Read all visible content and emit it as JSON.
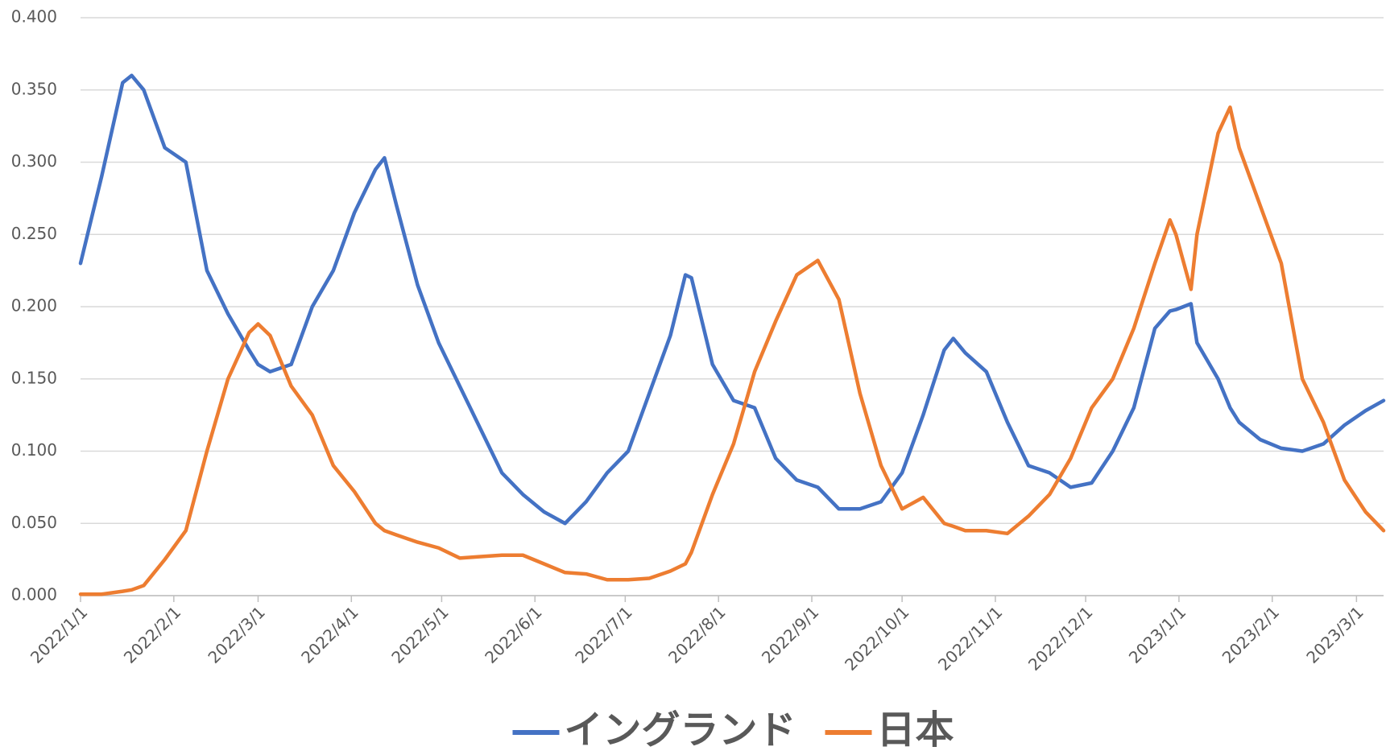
{
  "chart_data": {
    "type": "line",
    "x": [
      "2022/1/1",
      "2022/1/8",
      "2022/1/15",
      "2022/1/18",
      "2022/1/22",
      "2022/1/29",
      "2022/2/5",
      "2022/2/12",
      "2022/2/19",
      "2022/2/26",
      "2022/3/1",
      "2022/3/5",
      "2022/3/12",
      "2022/3/19",
      "2022/3/26",
      "2022/4/2",
      "2022/4/9",
      "2022/4/12",
      "2022/4/16",
      "2022/4/23",
      "2022/4/30",
      "2022/5/7",
      "2022/5/14",
      "2022/5/21",
      "2022/5/28",
      "2022/6/4",
      "2022/6/11",
      "2022/6/18",
      "2022/6/25",
      "2022/7/2",
      "2022/7/9",
      "2022/7/16",
      "2022/7/21",
      "2022/7/23",
      "2022/7/30",
      "2022/8/6",
      "2022/8/13",
      "2022/8/20",
      "2022/8/27",
      "2022/9/3",
      "2022/9/10",
      "2022/9/17",
      "2022/9/24",
      "2022/10/1",
      "2022/10/8",
      "2022/10/15",
      "2022/10/18",
      "2022/10/22",
      "2022/10/29",
      "2022/11/5",
      "2022/11/12",
      "2022/11/19",
      "2022/11/26",
      "2022/12/3",
      "2022/12/10",
      "2022/12/17",
      "2022/12/24",
      "2022/12/29",
      "2022/12/31",
      "2023/1/5",
      "2023/1/7",
      "2023/1/14",
      "2023/1/18",
      "2023/1/21",
      "2023/1/28",
      "2023/2/4",
      "2023/2/11",
      "2023/2/18",
      "2023/2/25",
      "2023/3/4",
      "2023/3/10"
    ],
    "series": [
      {
        "name": "イングランド",
        "color": "#4472c4",
        "values": [
          0.23,
          0.29,
          0.355,
          0.36,
          0.35,
          0.31,
          0.3,
          0.225,
          0.195,
          0.17,
          0.16,
          0.155,
          0.16,
          0.2,
          0.225,
          0.265,
          0.295,
          0.303,
          0.27,
          0.215,
          0.175,
          0.145,
          0.115,
          0.085,
          0.07,
          0.058,
          0.05,
          0.065,
          0.085,
          0.1,
          0.14,
          0.18,
          0.222,
          0.22,
          0.16,
          0.135,
          0.13,
          0.095,
          0.08,
          0.075,
          0.06,
          0.06,
          0.065,
          0.085,
          0.125,
          0.17,
          0.178,
          0.168,
          0.155,
          0.12,
          0.09,
          0.085,
          0.075,
          0.078,
          0.1,
          0.13,
          0.185,
          0.197,
          0.198,
          0.202,
          0.175,
          0.15,
          0.13,
          0.12,
          0.108,
          0.102,
          0.1,
          0.105,
          0.118,
          0.128,
          0.135
        ]
      },
      {
        "name": "日本",
        "color": "#ed7d31",
        "values": [
          0.001,
          0.001,
          0.003,
          0.004,
          0.007,
          0.025,
          0.045,
          0.1,
          0.15,
          0.182,
          0.188,
          0.18,
          0.145,
          0.125,
          0.09,
          0.072,
          0.05,
          0.045,
          0.042,
          0.037,
          0.033,
          0.026,
          0.027,
          0.028,
          0.028,
          0.022,
          0.016,
          0.015,
          0.011,
          0.011,
          0.012,
          0.017,
          0.022,
          0.03,
          0.07,
          0.105,
          0.155,
          0.19,
          0.222,
          0.232,
          0.205,
          0.14,
          0.09,
          0.06,
          0.068,
          0.05,
          0.048,
          0.045,
          0.045,
          0.043,
          0.055,
          0.07,
          0.095,
          0.13,
          0.15,
          0.185,
          0.23,
          0.26,
          0.25,
          0.212,
          0.25,
          0.32,
          0.338,
          0.31,
          0.27,
          0.23,
          0.15,
          0.12,
          0.08,
          0.058,
          0.045
        ]
      }
    ],
    "xlim": [
      "2022/1/1",
      "2023/3/10"
    ],
    "xticks": [
      "2022/1/1",
      "2022/2/1",
      "2022/3/1",
      "2022/4/1",
      "2022/5/1",
      "2022/6/1",
      "2022/7/1",
      "2022/8/1",
      "2022/9/1",
      "2022/10/1",
      "2022/11/1",
      "2022/12/1",
      "2023/1/1",
      "2023/2/1",
      "2023/3/1"
    ],
    "ylim": [
      0,
      0.4
    ],
    "yticks": [
      {
        "value": 0,
        "label": "0.000"
      },
      {
        "value": 0.05,
        "label": "0.050"
      },
      {
        "value": 0.1,
        "label": "0.100"
      },
      {
        "value": 0.15,
        "label": "0.150"
      },
      {
        "value": 0.2,
        "label": "0.200"
      },
      {
        "value": 0.25,
        "label": "0.250"
      },
      {
        "value": 0.3,
        "label": "0.300"
      },
      {
        "value": 0.35,
        "label": "0.350"
      },
      {
        "value": 0.4,
        "label": "0.400"
      }
    ],
    "grid": true,
    "legend": "bottom"
  }
}
